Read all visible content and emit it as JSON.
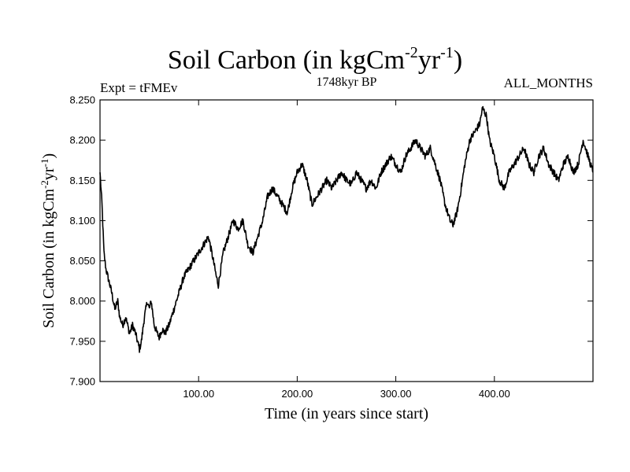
{
  "header": {
    "title_main": "Soil Carbon (in kgCm",
    "title_sup1": "-2",
    "title_mid": "yr",
    "title_sup2": "-1",
    "title_end": ")",
    "expt": "Expt = tFMEv",
    "period": "1748kyr BP",
    "months": "ALL_MONTHS"
  },
  "chart_data": {
    "type": "line",
    "title": "Soil Carbon (in kgCm-2yr-1)",
    "xlabel": "Time (in years since start)",
    "ylabel_main": "Soil Carbon (in kgCm",
    "ylabel_sup1": "-2",
    "ylabel_mid": "yr",
    "ylabel_sup2": "-1",
    "ylabel_end": ")",
    "xlim": [
      0,
      500
    ],
    "ylim": [
      7.9,
      8.25
    ],
    "xticks": [
      100,
      200,
      300,
      400
    ],
    "xtick_labels": [
      "100.00",
      "200.00",
      "300.00",
      "400.00"
    ],
    "yticks": [
      7.9,
      7.95,
      8.0,
      8.05,
      8.1,
      8.15,
      8.2,
      8.25
    ],
    "ytick_labels": [
      "7.900",
      "7.950",
      "8.000",
      "8.050",
      "8.100",
      "8.150",
      "8.200",
      "8.250"
    ],
    "grid": false,
    "series": [
      {
        "name": "Soil Carbon",
        "color": "#000000",
        "x": [
          0,
          2,
          4,
          6,
          8,
          10,
          12,
          15,
          18,
          20,
          23,
          26,
          30,
          33,
          36,
          38,
          40,
          42,
          45,
          48,
          50,
          52,
          55,
          58,
          60,
          63,
          66,
          70,
          75,
          80,
          85,
          90,
          95,
          100,
          105,
          110,
          115,
          118,
          120,
          125,
          130,
          135,
          140,
          145,
          150,
          155,
          160,
          165,
          170,
          175,
          180,
          185,
          190,
          195,
          200,
          205,
          210,
          215,
          220,
          225,
          230,
          235,
          240,
          245,
          250,
          255,
          260,
          265,
          270,
          275,
          280,
          285,
          290,
          295,
          300,
          305,
          310,
          315,
          320,
          325,
          330,
          335,
          340,
          345,
          350,
          355,
          358,
          362,
          365,
          370,
          375,
          380,
          385,
          388,
          392,
          395,
          400,
          405,
          410,
          415,
          420,
          425,
          430,
          435,
          440,
          445,
          450,
          455,
          460,
          465,
          470,
          475,
          480,
          485,
          490,
          495,
          500
        ],
        "values": [
          8.16,
          8.12,
          8.06,
          8.04,
          8.03,
          8.02,
          8.01,
          7.99,
          8.0,
          7.98,
          7.97,
          7.98,
          7.96,
          7.97,
          7.96,
          7.95,
          7.94,
          7.95,
          7.98,
          8.0,
          7.99,
          8.0,
          7.97,
          7.96,
          7.955,
          7.965,
          7.96,
          7.97,
          7.99,
          8.01,
          8.03,
          8.04,
          8.05,
          8.06,
          8.07,
          8.08,
          8.05,
          8.03,
          8.02,
          8.06,
          8.08,
          8.1,
          8.09,
          8.1,
          8.07,
          8.06,
          8.08,
          8.1,
          8.13,
          8.14,
          8.13,
          8.12,
          8.11,
          8.14,
          8.16,
          8.17,
          8.15,
          8.12,
          8.13,
          8.14,
          8.15,
          8.14,
          8.15,
          8.16,
          8.15,
          8.145,
          8.16,
          8.15,
          8.14,
          8.15,
          8.14,
          8.16,
          8.17,
          8.18,
          8.17,
          8.16,
          8.18,
          8.19,
          8.2,
          8.19,
          8.18,
          8.19,
          8.17,
          8.15,
          8.12,
          8.1,
          8.095,
          8.11,
          8.13,
          8.17,
          8.2,
          8.21,
          8.22,
          8.24,
          8.23,
          8.2,
          8.18,
          8.15,
          8.14,
          8.16,
          8.17,
          8.18,
          8.19,
          8.17,
          8.16,
          8.18,
          8.19,
          8.17,
          8.16,
          8.15,
          8.17,
          8.18,
          8.16,
          8.17,
          8.2,
          8.18,
          8.16
        ]
      }
    ]
  }
}
